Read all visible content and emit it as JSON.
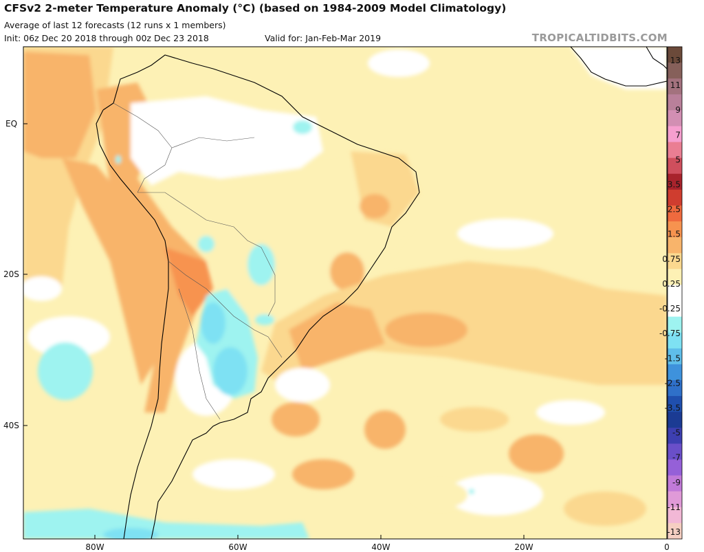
{
  "header": {
    "title": "CFSv2 2-meter Temperature Anomaly (°C) (based on 1984-2009 Model Climatology)",
    "subtitle": "Average of last 12 forecasts (12 runs x 1 members)",
    "init": "Init: 06z Dec 20 2018 through 00z Dec 23 2018",
    "valid": "Valid for: Jan-Feb-Mar 2019",
    "brand": "TROPICALTIDBITS.COM"
  },
  "axes": {
    "y_ticks": [
      "EQ",
      "20S",
      "40S"
    ],
    "x_ticks": [
      "80W",
      "60W",
      "40W",
      "20W",
      "0"
    ]
  },
  "colorbar": {
    "labels": [
      "13",
      "11",
      "9",
      "7",
      "5",
      "3.5",
      "2.5",
      "1.5",
      "0.75",
      "0.25",
      "-0.25",
      "-0.75",
      "-1.5",
      "-2.5",
      "-3.5",
      "-5",
      "-7",
      "-9",
      "-11",
      "-13"
    ],
    "colors": [
      "#6b4a3a",
      "#86605a",
      "#a3727e",
      "#b9809a",
      "#d28fb3",
      "#f69fcf",
      "#ea7e93",
      "#cf4f5d",
      "#a8232c",
      "#cf3d2f",
      "#ef6a3e",
      "#f7934f",
      "#f8b46b",
      "#fbd88f",
      "#fdf1b5",
      "#ffffff",
      "#ffffff",
      "#9ef3f0",
      "#7ee1f3",
      "#5fbeea",
      "#3e92dc",
      "#2f70c9",
      "#1f4fae",
      "#1b3b93",
      "#3d3fb1",
      "#6a4fc9",
      "#9560d8",
      "#c17ad8",
      "#e09ad8",
      "#f2b8d6",
      "#f6cfc2"
    ]
  },
  "map": {
    "region": "South America and tropical/South Atlantic",
    "colors": {
      "ocean_light": "#fdf1b5",
      "warm": "#fbd88f",
      "warmer": "#f8b46b",
      "hot": "#f7934f",
      "neutral": "#ffffff",
      "cool": "#9ef3f0",
      "cooler": "#7ee1f3",
      "cold": "#5fbeea"
    }
  }
}
